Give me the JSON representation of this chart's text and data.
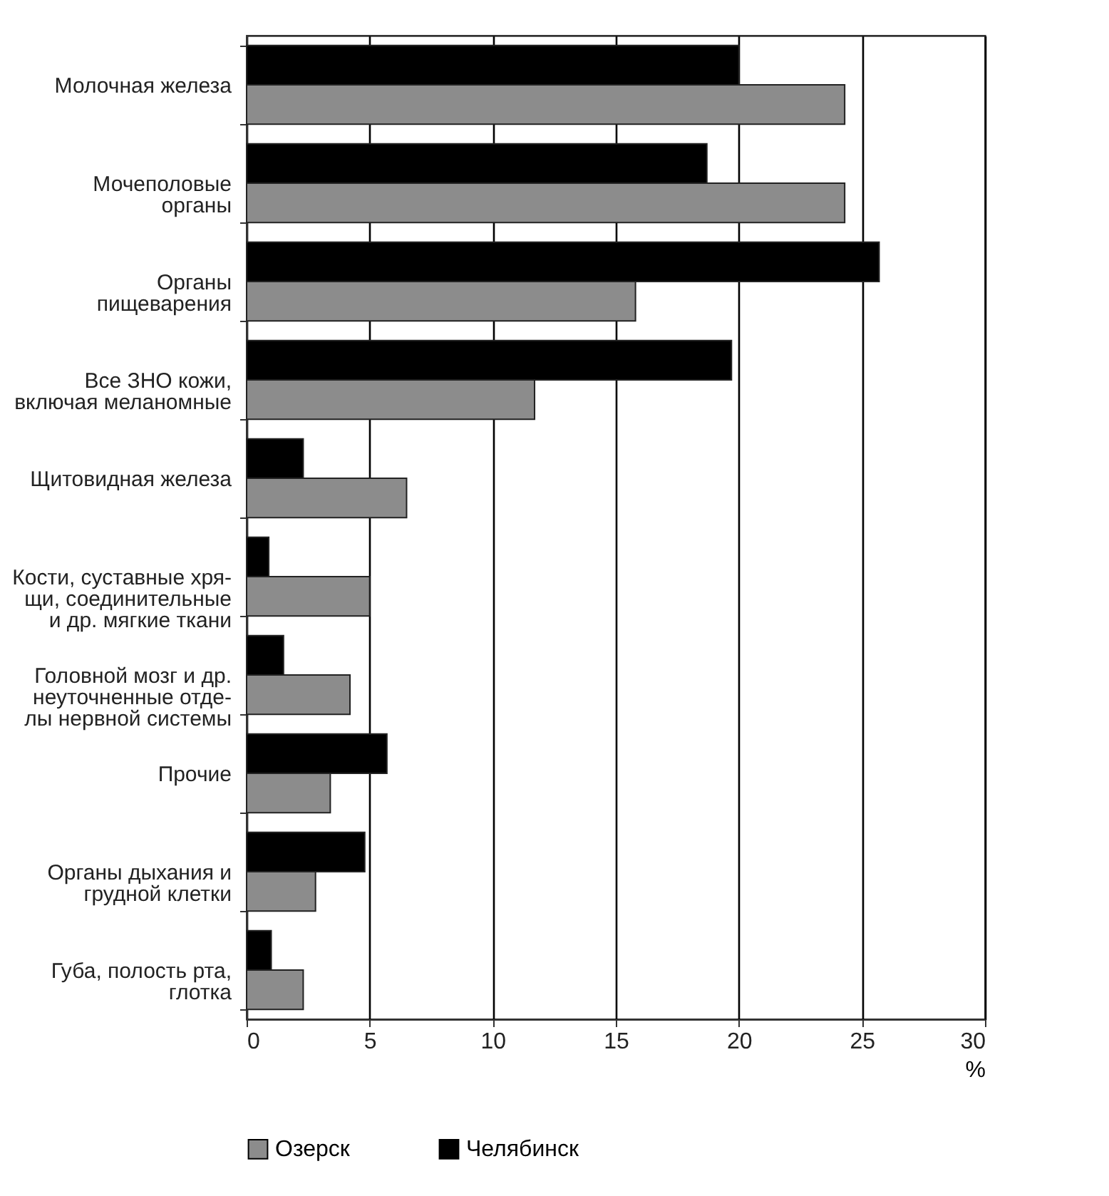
{
  "chart_data": {
    "type": "bar",
    "orientation": "horizontal",
    "xlabel": "%",
    "categories": [
      "Молочная железа",
      "Мочеполовые\nорганы",
      "Органы\nпищеварения",
      "Все ЗНО кожи,\nвключая меланомные",
      "Щитовидная железа",
      "Кости, суставные хря-\nщи, соединительные\nи др. мягкие ткани",
      "Головной мозг и др.\nнеуточненные отде-\nлы нервной системы",
      "Прочие",
      "Органы дыхания и\nгрудной клетки",
      "Губа, полость рта,\nглотка"
    ],
    "series": [
      {
        "name": "Озерск",
        "color": "#8c8c8c",
        "values": [
          24.3,
          24.3,
          15.8,
          11.7,
          6.5,
          5.0,
          4.2,
          3.4,
          2.8,
          2.3
        ]
      },
      {
        "name": "Челябинск",
        "color": "#000000",
        "values": [
          20.0,
          18.7,
          25.7,
          19.7,
          2.3,
          0.9,
          1.5,
          5.7,
          4.8,
          1.0
        ]
      }
    ],
    "xlim": [
      0,
      30
    ],
    "xticks": [
      0,
      5,
      10,
      15,
      20,
      25,
      30
    ],
    "grid": "x",
    "legend": "bottom"
  }
}
